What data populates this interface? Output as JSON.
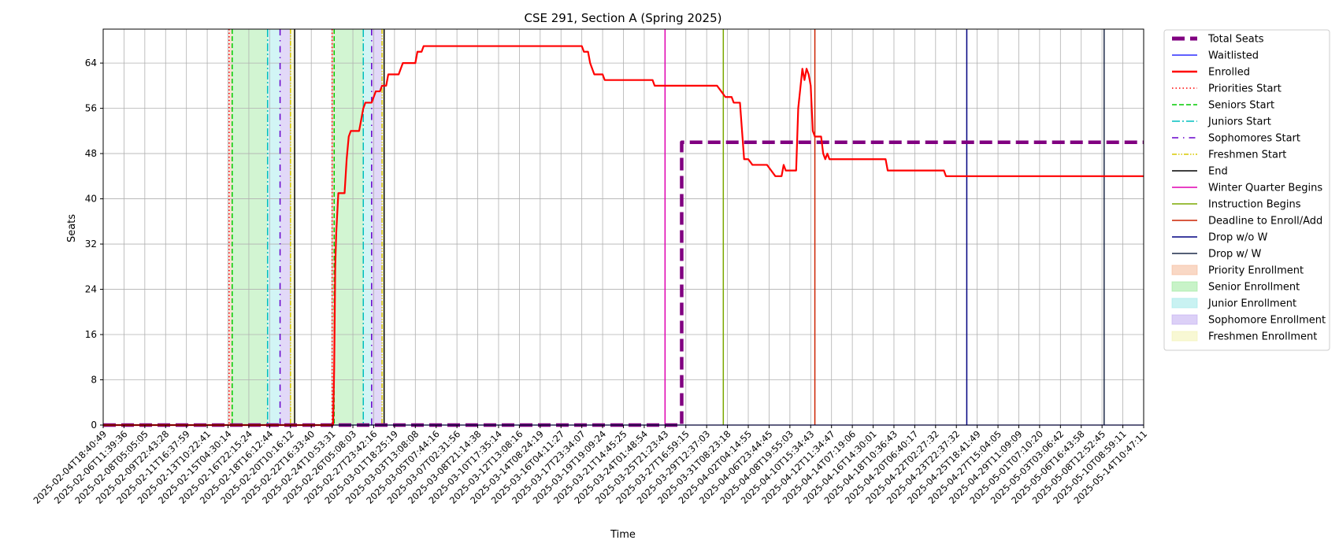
{
  "chart_data": {
    "type": "line",
    "title": "CSE 291, Section A (Spring 2025)",
    "xlabel": "Time",
    "ylabel": "Seats",
    "ylim": [
      0,
      70
    ],
    "yticks": [
      0,
      8,
      16,
      24,
      32,
      40,
      48,
      56,
      64
    ],
    "grid": true,
    "legend_position": "outside right",
    "xlim": [
      "2025-02-04T18:40:49",
      "2025-05-14T10:47:11"
    ],
    "xticks": [
      "2025-02-04T18:40:49",
      "2025-02-06T11:39:36",
      "2025-02-08T05:05:05",
      "2025-02-09T22:43:28",
      "2025-02-11T16:37:59",
      "2025-02-13T10:22:41",
      "2025-02-15T04:30:14",
      "2025-02-16T22:15:24",
      "2025-02-18T16:12:44",
      "2025-02-20T10:16:12",
      "2025-02-22T16:33:40",
      "2025-02-24T10:53:31",
      "2025-02-26T05:08:03",
      "2025-02-27T23:42:16",
      "2025-03-01T18:25:19",
      "2025-03-03T13:08:08",
      "2025-03-05T07:44:16",
      "2025-03-07T02:31:56",
      "2025-03-08T21:14:38",
      "2025-03-10T17:35:14",
      "2025-03-12T13:08:16",
      "2025-03-14T08:24:19",
      "2025-03-16T04:11:27",
      "2025-03-17T23:34:07",
      "2025-03-19T19:09:24",
      "2025-03-21T14:45:25",
      "2025-03-24T01:48:54",
      "2025-03-25T21:23:43",
      "2025-03-27T16:59:15",
      "2025-03-29T12:37:03",
      "2025-03-31T08:23:18",
      "2025-04-02T04:14:55",
      "2025-04-06T23:44:45",
      "2025-04-08T19:55:03",
      "2025-04-10T15:34:43",
      "2025-04-12T11:34:47",
      "2025-04-14T07:19:06",
      "2025-04-16T14:30:01",
      "2025-04-18T10:36:43",
      "2025-04-20T06:40:17",
      "2025-04-22T02:27:32",
      "2025-04-23T22:37:32",
      "2025-04-25T18:41:49",
      "2025-04-27T15:04:05",
      "2025-04-29T11:09:09",
      "2025-05-01T07:10:20",
      "2025-05-03T03:06:42",
      "2025-05-06T16:43:58",
      "2025-05-08T12:52:45",
      "2025-05-10T08:59:11",
      "2025-05-14T10:47:11"
    ],
    "series": [
      {
        "name": "Total Seats",
        "color": "#800080",
        "style": "dashed-thick",
        "points": [
          [
            0,
            0
          ],
          [
            27.8,
            0
          ],
          [
            27.8,
            50
          ],
          [
            50,
            50
          ]
        ]
      },
      {
        "name": "Waitlisted",
        "color": "#0000ff",
        "style": "solid",
        "points": [
          [
            0,
            0
          ],
          [
            50,
            0
          ]
        ]
      },
      {
        "name": "Enrolled",
        "color": "#ff0000",
        "style": "solid-thick",
        "points": [
          [
            0,
            0
          ],
          [
            11.05,
            0
          ],
          [
            11.1,
            10
          ],
          [
            11.15,
            28
          ],
          [
            11.2,
            34
          ],
          [
            11.3,
            41
          ],
          [
            11.6,
            41
          ],
          [
            11.7,
            47
          ],
          [
            11.8,
            51
          ],
          [
            11.9,
            52
          ],
          [
            12.3,
            52
          ],
          [
            12.4,
            54
          ],
          [
            12.5,
            56
          ],
          [
            12.6,
            57
          ],
          [
            12.9,
            57
          ],
          [
            13.0,
            58
          ],
          [
            13.1,
            59
          ],
          [
            13.3,
            59
          ],
          [
            13.4,
            60
          ],
          [
            13.6,
            60
          ],
          [
            13.7,
            62
          ],
          [
            14.2,
            62
          ],
          [
            14.3,
            63
          ],
          [
            14.4,
            64
          ],
          [
            15.0,
            64
          ],
          [
            15.1,
            66
          ],
          [
            15.3,
            66
          ],
          [
            15.4,
            67
          ],
          [
            23.0,
            67
          ],
          [
            23.1,
            66
          ],
          [
            23.3,
            66
          ],
          [
            23.4,
            64
          ],
          [
            23.6,
            62
          ],
          [
            24.0,
            62
          ],
          [
            24.1,
            61
          ],
          [
            26.4,
            61
          ],
          [
            26.5,
            60
          ],
          [
            29.5,
            60
          ],
          [
            29.7,
            59
          ],
          [
            29.9,
            58
          ],
          [
            30.2,
            58
          ],
          [
            30.3,
            57
          ],
          [
            30.6,
            57
          ],
          [
            30.8,
            47
          ],
          [
            31.0,
            47
          ],
          [
            31.2,
            46
          ],
          [
            31.9,
            46
          ],
          [
            32.1,
            45
          ],
          [
            32.3,
            44
          ],
          [
            32.6,
            44
          ],
          [
            32.7,
            46
          ],
          [
            32.8,
            45
          ],
          [
            33.3,
            45
          ],
          [
            33.4,
            56
          ],
          [
            33.6,
            63
          ],
          [
            33.7,
            61
          ],
          [
            33.8,
            63
          ],
          [
            33.9,
            62
          ],
          [
            34.0,
            60
          ],
          [
            34.1,
            52
          ],
          [
            34.2,
            51
          ],
          [
            34.5,
            51
          ],
          [
            34.6,
            48
          ],
          [
            34.7,
            47
          ],
          [
            34.8,
            48
          ],
          [
            34.9,
            47
          ],
          [
            37.6,
            47
          ],
          [
            37.7,
            45
          ],
          [
            40.4,
            45
          ],
          [
            40.5,
            44
          ],
          [
            50,
            44
          ]
        ]
      }
    ],
    "events": [
      {
        "name": "Priorities Start",
        "color": "#ff0000",
        "style": "dotted",
        "x": [
          6.05,
          11.0
        ]
      },
      {
        "name": "Seniors Start",
        "color": "#00cc00",
        "style": "dashed",
        "x": [
          6.2,
          11.1
        ]
      },
      {
        "name": "Juniors Start",
        "color": "#00bfbf",
        "style": "dashdot",
        "x": [
          7.9,
          12.5
        ]
      },
      {
        "name": "Sophomores Start",
        "color": "#6600cc",
        "style": "dashdotsparse",
        "x": [
          8.5,
          12.9
        ]
      },
      {
        "name": "Freshmen Start",
        "color": "#d8c800",
        "style": "dashdotdot",
        "x": [
          9.0,
          13.4
        ]
      },
      {
        "name": "End",
        "color": "#000000",
        "style": "solid",
        "x": [
          9.2,
          13.5
        ]
      },
      {
        "name": "Winter Quarter Begins",
        "color": "#e000b0",
        "style": "solid",
        "x": [
          27.0
        ]
      },
      {
        "name": "Instruction Begins",
        "color": "#7ba800",
        "style": "solid",
        "x": [
          29.8
        ]
      },
      {
        "name": "Deadline to Enroll/Add",
        "color": "#cc2200",
        "style": "solid",
        "x": [
          34.2
        ]
      },
      {
        "name": "Drop w/o W",
        "color": "#000080",
        "style": "solid",
        "x": [
          41.5
        ]
      },
      {
        "name": "Drop w/ W",
        "color": "#1c2a48",
        "style": "solid",
        "x": [
          48.1
        ]
      }
    ],
    "periods": [
      {
        "name": "Priority Enrollment",
        "color": "#f4b896",
        "ranges": [
          [
            6.05,
            6.2
          ],
          [
            11.0,
            11.1
          ]
        ]
      },
      {
        "name": "Senior Enrollment",
        "color": "#9be99b",
        "ranges": [
          [
            6.2,
            7.9
          ],
          [
            11.1,
            12.5
          ]
        ]
      },
      {
        "name": "Junior Enrollment",
        "color": "#9ce8e8",
        "ranges": [
          [
            7.9,
            8.5
          ],
          [
            12.5,
            12.9
          ]
        ]
      },
      {
        "name": "Sophomore Enrollment",
        "color": "#bfaaf0",
        "ranges": [
          [
            8.5,
            9.0
          ],
          [
            12.9,
            13.4
          ]
        ]
      },
      {
        "name": "Freshmen Enrollment",
        "color": "#f2f2b0",
        "ranges": [
          [
            9.0,
            9.2
          ],
          [
            13.4,
            13.5
          ]
        ]
      }
    ]
  }
}
